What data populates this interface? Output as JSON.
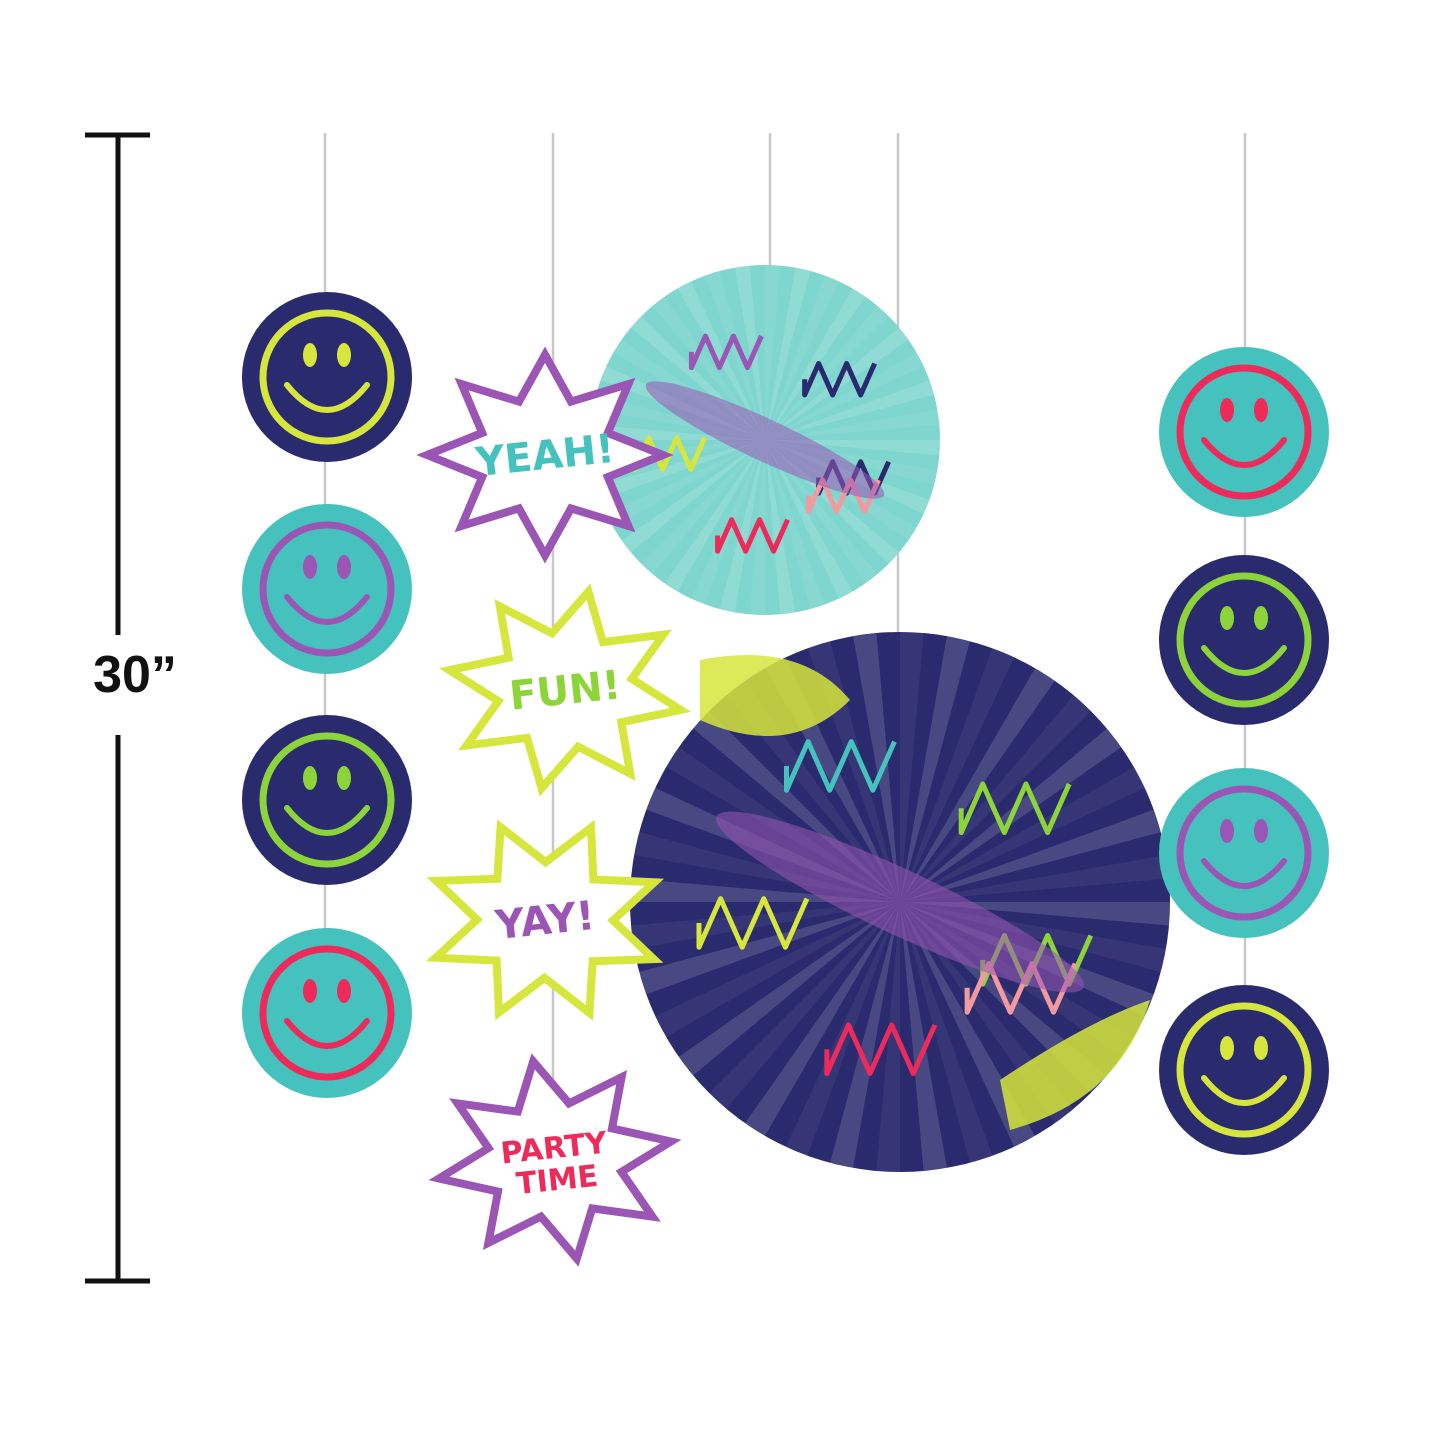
{
  "dimension": {
    "label": "30”"
  },
  "colors": {
    "navy": "#2a2a6e",
    "teal": "#45c2bd",
    "yellow": "#d6e63c",
    "green": "#8cd43a",
    "purple": "#9b55b5",
    "red": "#ee2a5a",
    "pink": "#f39aa0"
  },
  "smileys_left": [
    {
      "bg": "#2a2a6e",
      "fg": "#d6e63c"
    },
    {
      "bg": "#45c2bd",
      "fg": "#9b55b5"
    },
    {
      "bg": "#2a2a6e",
      "fg": "#8cd43a"
    },
    {
      "bg": "#45c2bd",
      "fg": "#ee2a5a"
    }
  ],
  "smileys_right": [
    {
      "bg": "#45c2bd",
      "fg": "#ee2a5a"
    },
    {
      "bg": "#2a2a6e",
      "fg": "#8cd43a"
    },
    {
      "bg": "#45c2bd",
      "fg": "#9b55b5"
    },
    {
      "bg": "#2a2a6e",
      "fg": "#d6e63c"
    }
  ],
  "stars": [
    {
      "text": "YEAH!",
      "outline": "#9b55b5",
      "textColor": "#45c2bd"
    },
    {
      "text": "FUN!",
      "outline": "#d6e63c",
      "textColor": "#8cd43a"
    },
    {
      "text": "YAY!",
      "outline": "#d6e63c",
      "textColor": "#9b55b5"
    },
    {
      "text": "PARTY TIME",
      "outline": "#9b55b5",
      "textColor": "#ee2a5a"
    }
  ]
}
